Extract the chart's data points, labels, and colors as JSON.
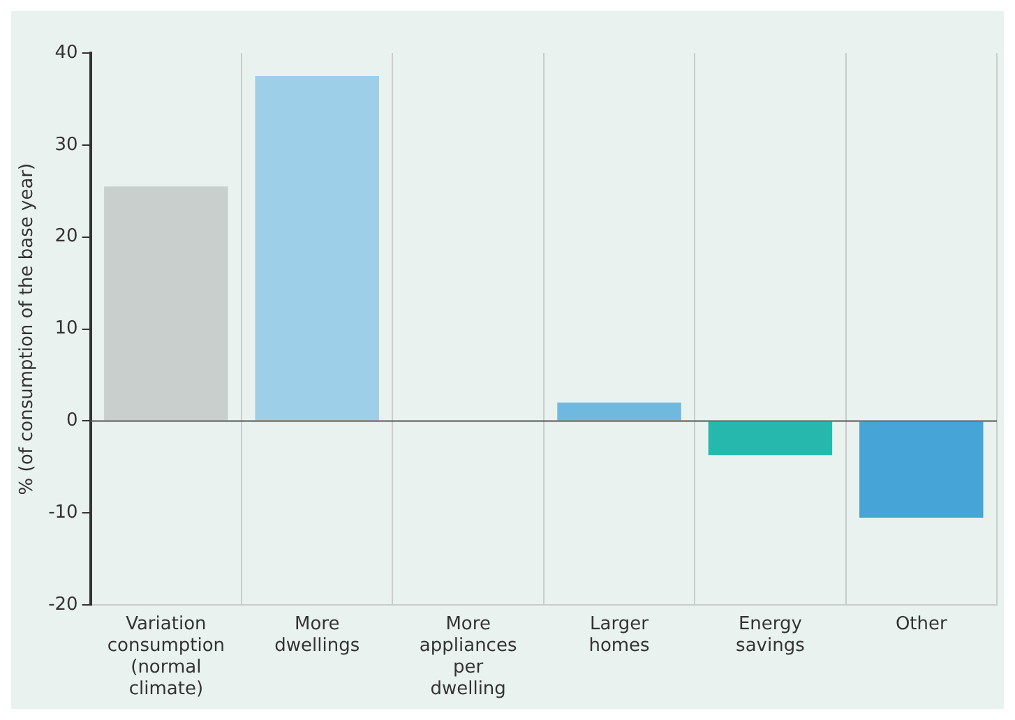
{
  "chart_data": {
    "type": "bar",
    "ylabel": "% (of consumption of the base year)",
    "categories": [
      [
        "Variation",
        "consumption",
        "(normal",
        "climate)"
      ],
      [
        "More",
        "dwellings"
      ],
      [
        "More",
        "appliances",
        "per",
        "dwelling"
      ],
      [
        "Larger",
        "homes"
      ],
      [
        "Energy",
        "savings"
      ],
      [
        "Other"
      ]
    ],
    "values": [
      25.5,
      37.5,
      0,
      2.0,
      -3.7,
      -10.5
    ],
    "colors": [
      "#c9cfcc",
      "#9dd0e8",
      "#9dd0e8",
      "#6fb8de",
      "#26b8ad",
      "#46a4d6"
    ],
    "ylim": [
      -20,
      40
    ],
    "yticks": [
      -20,
      -10,
      0,
      10,
      20,
      30,
      40
    ],
    "grid": "x",
    "legend": false
  }
}
